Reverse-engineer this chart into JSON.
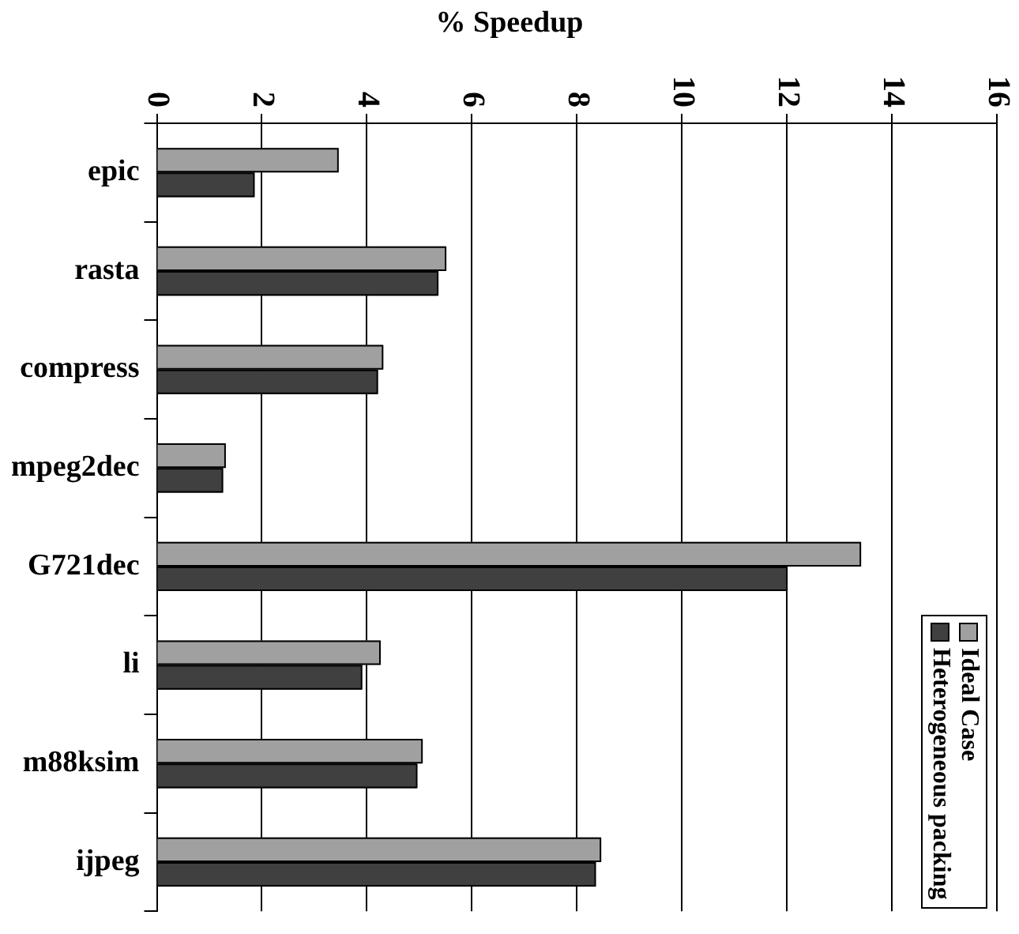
{
  "chart_data": {
    "type": "bar",
    "orientation": "horizontal",
    "title": "% Speedup",
    "categories": [
      "epic",
      "rasta",
      "compress",
      "mpeg2dec",
      "G721dec",
      "li",
      "m88ksim",
      "ijpeg"
    ],
    "series": [
      {
        "name": "Ideal Case",
        "color": "#a0a0a0",
        "values": [
          3.45,
          5.5,
          4.3,
          1.3,
          13.4,
          4.25,
          5.05,
          8.45
        ]
      },
      {
        "name": "Heterogeneous packing",
        "color": "#404040",
        "values": [
          1.85,
          5.35,
          4.2,
          1.25,
          12.0,
          3.9,
          4.95,
          8.35
        ]
      }
    ],
    "xlim": [
      0,
      16
    ],
    "xticks": [
      0,
      2,
      4,
      6,
      8,
      10,
      12,
      14,
      16
    ],
    "grid": "x",
    "legend": "bottom right"
  }
}
